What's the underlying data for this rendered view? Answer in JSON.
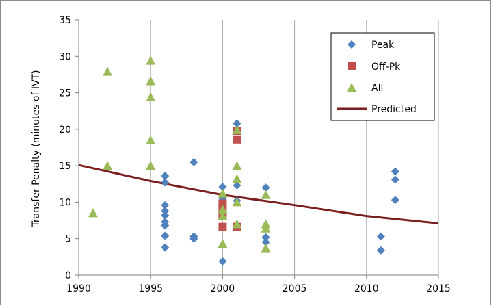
{
  "chart_data": {
    "type": "scatter",
    "title": "",
    "xlabel": "",
    "ylabel": "Transfer Penalty (minutes of IVT)",
    "xlim": [
      1990,
      2015
    ],
    "ylim": [
      0,
      35
    ],
    "x_ticks": [
      "1990",
      "1995",
      "2000",
      "2005",
      "2010",
      "2015"
    ],
    "y_ticks": [
      "0",
      "5",
      "10",
      "15",
      "20",
      "25",
      "30",
      "35"
    ],
    "grid": "vertical",
    "legend_position": "top-right",
    "series": [
      {
        "name": "Peak",
        "marker": "diamond",
        "color": "#4f81bd",
        "points": [
          [
            1996,
            13.6
          ],
          [
            1996,
            12.7
          ],
          [
            1996,
            9.6
          ],
          [
            1996,
            8.8
          ],
          [
            1996,
            8.2
          ],
          [
            1996,
            7.3
          ],
          [
            1996,
            6.8
          ],
          [
            1996,
            5.4
          ],
          [
            1996,
            3.8
          ],
          [
            1998,
            15.5
          ],
          [
            1998,
            5.3
          ],
          [
            1998,
            5.0
          ],
          [
            2000,
            12.1
          ],
          [
            2000,
            10.5
          ],
          [
            2000,
            1.9
          ],
          [
            2001,
            20.8
          ],
          [
            2001,
            12.3
          ],
          [
            2001,
            10.2
          ],
          [
            2003,
            12.0
          ],
          [
            2003,
            5.2
          ],
          [
            2003,
            4.5
          ],
          [
            2011,
            5.3
          ],
          [
            2011,
            3.4
          ],
          [
            2012,
            14.2
          ],
          [
            2012,
            13.1
          ],
          [
            2012,
            10.3
          ]
        ]
      },
      {
        "name": "Off-Pk",
        "marker": "square",
        "color": "#c0504d",
        "points": [
          [
            2000,
            9.8
          ],
          [
            2000,
            9.0
          ],
          [
            2000,
            8.1
          ],
          [
            2000,
            6.6
          ],
          [
            2001,
            19.8
          ],
          [
            2001,
            18.6
          ],
          [
            2001,
            6.6
          ]
        ]
      },
      {
        "name": "All",
        "marker": "triangle",
        "color": "#9bbb59",
        "points": [
          [
            1991,
            8.5
          ],
          [
            1992,
            27.9
          ],
          [
            1992,
            15.0
          ],
          [
            1995,
            29.4
          ],
          [
            1995,
            26.6
          ],
          [
            1995,
            24.4
          ],
          [
            1995,
            18.5
          ],
          [
            1995,
            15.0
          ],
          [
            2000,
            11.2
          ],
          [
            2000,
            9.0
          ],
          [
            2000,
            8.1
          ],
          [
            2000,
            4.3
          ],
          [
            2001,
            19.9
          ],
          [
            2001,
            15.0
          ],
          [
            2001,
            13.2
          ],
          [
            2001,
            10.0
          ],
          [
            2001,
            7.0
          ],
          [
            2003,
            11.0
          ],
          [
            2003,
            7.0
          ],
          [
            2003,
            6.4
          ],
          [
            2003,
            3.7
          ]
        ]
      },
      {
        "name": "Predicted",
        "marker": "line",
        "color": "#7a1f1f",
        "points": [
          [
            1990,
            15.1
          ],
          [
            1995,
            12.9
          ],
          [
            2000,
            11.0
          ],
          [
            2005,
            9.6
          ],
          [
            2010,
            8.1
          ],
          [
            2015,
            7.1
          ]
        ]
      }
    ]
  }
}
